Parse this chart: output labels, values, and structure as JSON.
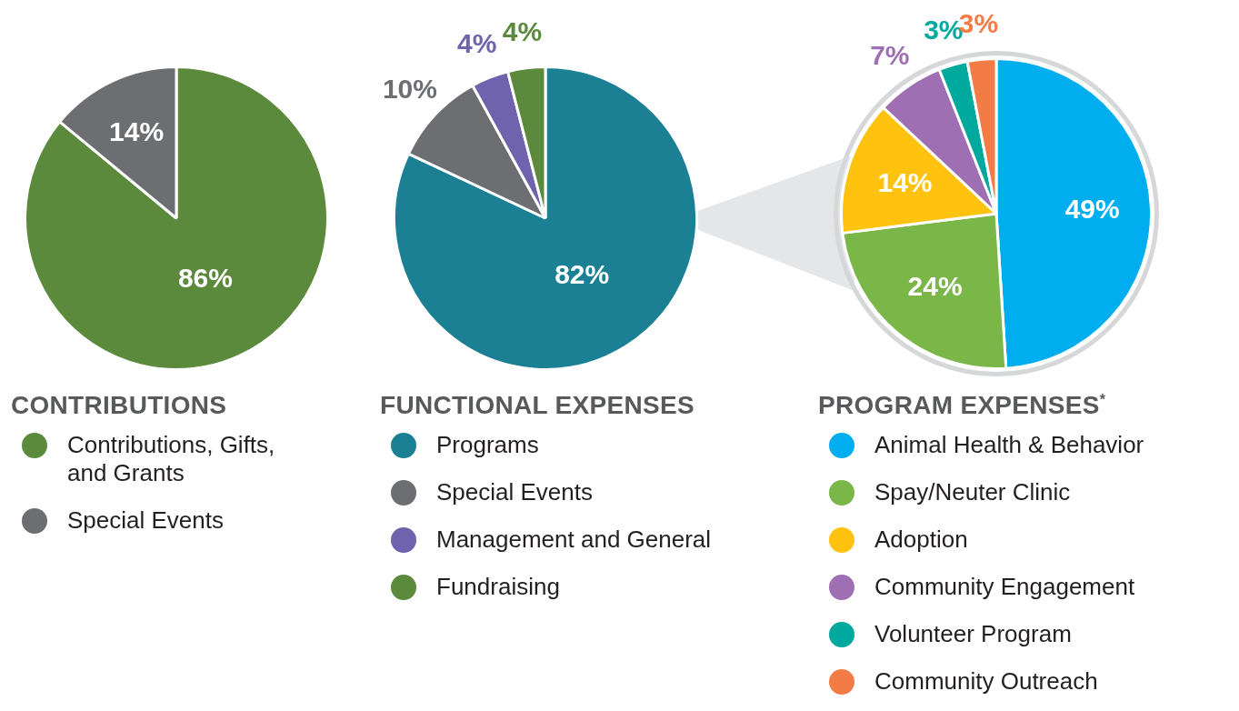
{
  "chart_data": [
    {
      "type": "pie",
      "title": "CONTRIBUTIONS",
      "categories": [
        "Contributions, Gifts, and Grants",
        "Special Events"
      ],
      "values": [
        86,
        14
      ],
      "value_labels": [
        "86%",
        "14%"
      ],
      "colors": [
        "#5b8a3c",
        "#6d6e71"
      ],
      "legend": "bottom"
    },
    {
      "type": "pie",
      "title": "FUNCTIONAL EXPENSES",
      "categories": [
        "Programs",
        "Special Events",
        "Management and General",
        "Fundraising"
      ],
      "values": [
        82,
        10,
        4,
        4
      ],
      "value_labels": [
        "82%",
        "10%",
        "4%",
        "4%"
      ],
      "colors": [
        "#1b8093",
        "#6d6e71",
        "#6f63ad",
        "#5b8a3c"
      ],
      "legend": "bottom"
    },
    {
      "type": "pie",
      "title": "PROGRAM EXPENSES$^{*}$",
      "categories": [
        "Animal Health & Behavior",
        "Spay/Neuter Clinic",
        "Adoption",
        "Community Engagement",
        "Volunteer Program",
        "Community Outreach"
      ],
      "values": [
        49,
        24,
        14,
        7,
        3,
        3
      ],
      "value_labels": [
        "49%",
        "24%",
        "14%",
        "7%",
        "3%",
        "3%"
      ],
      "colors": [
        "#00aeef",
        "#7ab648",
        "#ffc20e",
        "#9e6fb2",
        "#00a99d",
        "#f37b45"
      ],
      "legend": "bottom"
    }
  ]
}
